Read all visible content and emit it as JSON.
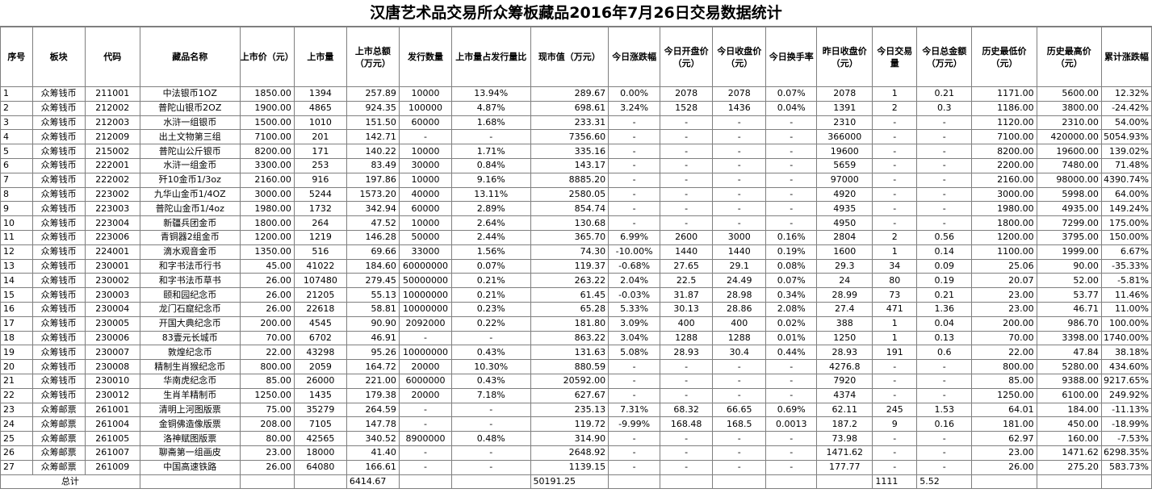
{
  "title": "汉唐艺术品交易所众筹板藏品2016年7月26日交易数据统计",
  "headers": [
    "序号",
    "板块",
    "代码",
    "藏品名称",
    "上市价（元）",
    "上市量",
    "上市总额（万元）",
    "发行数量",
    "上市量占发行量比",
    "现市值（万元）",
    "今日涨跌幅",
    "今日开盘价（元）",
    "今日收盘价（元）",
    "今日换手率",
    "昨日收盘价（元）",
    "今日交易量",
    "今日总金额（万元）",
    "历史最低价（元）",
    "历史最高价（元）",
    "累计涨跌幅"
  ],
  "rows": [
    [
      "1",
      "众筹钱币",
      "211001",
      "中法银币1OZ",
      "1850.00",
      "1394",
      "257.89",
      "10000",
      "13.94%",
      "289.67",
      "0.00%",
      "2078",
      "2078",
      "0.07%",
      "2078",
      "1",
      "0.21",
      "1171.00",
      "5600.00",
      "12.32%"
    ],
    [
      "2",
      "众筹钱币",
      "212002",
      "普陀山银币2OZ",
      "1900.00",
      "4865",
      "924.35",
      "100000",
      "4.87%",
      "698.61",
      "3.24%",
      "1528",
      "1436",
      "0.04%",
      "1391",
      "2",
      "0.3",
      "1186.00",
      "3800.00",
      "-24.42%"
    ],
    [
      "3",
      "众筹钱币",
      "212003",
      "水浒一组银币",
      "1500.00",
      "1010",
      "151.50",
      "60000",
      "1.68%",
      "233.31",
      "-",
      "-",
      "-",
      "-",
      "2310",
      "-",
      "-",
      "1120.00",
      "2310.00",
      "54.00%"
    ],
    [
      "4",
      "众筹钱币",
      "212009",
      "出土文物第三组",
      "7100.00",
      "201",
      "142.71",
      "-",
      "-",
      "7356.60",
      "-",
      "-",
      "-",
      "-",
      "366000",
      "-",
      "-",
      "7100.00",
      "420000.00",
      "5054.93%"
    ],
    [
      "5",
      "众筹钱币",
      "215002",
      "普陀山公斤银币",
      "8200.00",
      "171",
      "140.22",
      "10000",
      "1.71%",
      "335.16",
      "-",
      "-",
      "-",
      "-",
      "19600",
      "-",
      "-",
      "8200.00",
      "19600.00",
      "139.02%"
    ],
    [
      "6",
      "众筹钱币",
      "222001",
      "水浒一组金币",
      "3300.00",
      "253",
      "83.49",
      "30000",
      "0.84%",
      "143.17",
      "-",
      "-",
      "-",
      "-",
      "5659",
      "-",
      "-",
      "2200.00",
      "7480.00",
      "71.48%"
    ],
    [
      "7",
      "众筹钱币",
      "222002",
      "歼10金币1/3oz",
      "2160.00",
      "916",
      "197.86",
      "10000",
      "9.16%",
      "8885.20",
      "-",
      "-",
      "-",
      "-",
      "97000",
      "-",
      "-",
      "2160.00",
      "98000.00",
      "4390.74%"
    ],
    [
      "8",
      "众筹钱币",
      "223002",
      "九华山金币1/4OZ",
      "3000.00",
      "5244",
      "1573.20",
      "40000",
      "13.11%",
      "2580.05",
      "-",
      "-",
      "-",
      "-",
      "4920",
      "-",
      "-",
      "3000.00",
      "5998.00",
      "64.00%"
    ],
    [
      "9",
      "众筹钱币",
      "223003",
      "普陀山金币1/4oz",
      "1980.00",
      "1732",
      "342.94",
      "60000",
      "2.89%",
      "854.74",
      "-",
      "-",
      "-",
      "-",
      "4935",
      "-",
      "-",
      "1980.00",
      "4935.00",
      "149.24%"
    ],
    [
      "10",
      "众筹钱币",
      "223004",
      "新疆兵团金币",
      "1800.00",
      "264",
      "47.52",
      "10000",
      "2.64%",
      "130.68",
      "-",
      "-",
      "-",
      "-",
      "4950",
      "-",
      "-",
      "1800.00",
      "7299.00",
      "175.00%"
    ],
    [
      "11",
      "众筹钱币",
      "223006",
      "青铜器2组金币",
      "1200.00",
      "1219",
      "146.28",
      "50000",
      "2.44%",
      "365.70",
      "6.99%",
      "2600",
      "3000",
      "0.16%",
      "2804",
      "2",
      "0.56",
      "1200.00",
      "3795.00",
      "150.00%"
    ],
    [
      "12",
      "众筹钱币",
      "224001",
      "滴水观音金币",
      "1350.00",
      "516",
      "69.66",
      "33000",
      "1.56%",
      "74.30",
      "-10.00%",
      "1440",
      "1440",
      "0.19%",
      "1600",
      "1",
      "0.14",
      "1100.00",
      "1999.00",
      "6.67%"
    ],
    [
      "13",
      "众筹钱币",
      "230001",
      "和字书法币行书",
      "45.00",
      "41022",
      "184.60",
      "60000000",
      "0.07%",
      "119.37",
      "-0.68%",
      "27.65",
      "29.1",
      "0.08%",
      "29.3",
      "34",
      "0.09",
      "25.06",
      "90.00",
      "-35.33%"
    ],
    [
      "14",
      "众筹钱币",
      "230002",
      "和字书法币草书",
      "26.00",
      "107480",
      "279.45",
      "50000000",
      "0.21%",
      "263.22",
      "2.04%",
      "22.5",
      "24.49",
      "0.07%",
      "24",
      "80",
      "0.19",
      "20.07",
      "52.00",
      "-5.81%"
    ],
    [
      "15",
      "众筹钱币",
      "230003",
      "颐和园纪念币",
      "26.00",
      "21205",
      "55.13",
      "10000000",
      "0.21%",
      "61.45",
      "-0.03%",
      "31.87",
      "28.98",
      "0.34%",
      "28.99",
      "73",
      "0.21",
      "23.00",
      "53.77",
      "11.46%"
    ],
    [
      "16",
      "众筹钱币",
      "230004",
      "龙门石窟纪念币",
      "26.00",
      "22618",
      "58.81",
      "10000000",
      "0.23%",
      "65.28",
      "5.33%",
      "30.13",
      "28.86",
      "2.08%",
      "27.4",
      "471",
      "1.36",
      "23.00",
      "46.71",
      "11.00%"
    ],
    [
      "17",
      "众筹钱币",
      "230005",
      "开国大典纪念币",
      "200.00",
      "4545",
      "90.90",
      "2092000",
      "0.22%",
      "181.80",
      "3.09%",
      "400",
      "400",
      "0.02%",
      "388",
      "1",
      "0.04",
      "200.00",
      "986.70",
      "100.00%"
    ],
    [
      "18",
      "众筹钱币",
      "230006",
      "83壹元长城币",
      "70.00",
      "6702",
      "46.91",
      "-",
      "-",
      "863.22",
      "3.04%",
      "1288",
      "1288",
      "0.01%",
      "1250",
      "1",
      "0.13",
      "70.00",
      "3398.00",
      "1740.00%"
    ],
    [
      "19",
      "众筹钱币",
      "230007",
      "敦煌纪念币",
      "22.00",
      "43298",
      "95.26",
      "10000000",
      "0.43%",
      "131.63",
      "5.08%",
      "28.93",
      "30.4",
      "0.44%",
      "28.93",
      "191",
      "0.6",
      "22.00",
      "47.84",
      "38.18%"
    ],
    [
      "20",
      "众筹钱币",
      "230008",
      "精制生肖猴纪念币",
      "800.00",
      "2059",
      "164.72",
      "20000",
      "10.30%",
      "880.59",
      "-",
      "-",
      "-",
      "-",
      "4276.8",
      "-",
      "-",
      "800.00",
      "5280.00",
      "434.60%"
    ],
    [
      "21",
      "众筹钱币",
      "230010",
      "华南虎纪念币",
      "85.00",
      "26000",
      "221.00",
      "6000000",
      "0.43%",
      "20592.00",
      "-",
      "-",
      "-",
      "-",
      "7920",
      "-",
      "-",
      "85.00",
      "9388.00",
      "9217.65%"
    ],
    [
      "22",
      "众筹钱币",
      "230012",
      "生肖羊精制币",
      "1250.00",
      "1435",
      "179.38",
      "20000",
      "7.18%",
      "627.67",
      "-",
      "-",
      "-",
      "-",
      "4374",
      "-",
      "-",
      "1250.00",
      "6100.00",
      "249.92%"
    ],
    [
      "23",
      "众筹邮票",
      "261001",
      "清明上河图版票",
      "75.00",
      "35279",
      "264.59",
      "-",
      "-",
      "235.13",
      "7.31%",
      "68.32",
      "66.65",
      "0.69%",
      "62.11",
      "245",
      "1.53",
      "64.01",
      "184.00",
      "-11.13%"
    ],
    [
      "24",
      "众筹邮票",
      "261004",
      "金铜佛造像版票",
      "208.00",
      "7105",
      "147.78",
      "-",
      "-",
      "119.72",
      "-9.99%",
      "168.48",
      "168.5",
      "0.0013",
      "187.2",
      "9",
      "0.16",
      "181.00",
      "450.00",
      "-18.99%"
    ],
    [
      "25",
      "众筹邮票",
      "261005",
      "洛神赋图版票",
      "80.00",
      "42565",
      "340.52",
      "8900000",
      "0.48%",
      "314.90",
      "-",
      "-",
      "-",
      "-",
      "73.98",
      "-",
      "-",
      "62.97",
      "160.00",
      "-7.53%"
    ],
    [
      "26",
      "众筹邮票",
      "261007",
      "聊斋第一组画皮",
      "23.00",
      "18000",
      "41.40",
      "-",
      "-",
      "2648.92",
      "-",
      "-",
      "-",
      "-",
      "1471.62",
      "-",
      "-",
      "23.00",
      "1471.62",
      "6298.35%"
    ],
    [
      "27",
      "众筹邮票",
      "261009",
      "中国高速铁路",
      "26.00",
      "64080",
      "166.61",
      "-",
      "-",
      "1139.15",
      "-",
      "-",
      "-",
      "-",
      "177.77",
      "-",
      "-",
      "26.00",
      "275.20",
      "583.73%"
    ]
  ],
  "total": {
    "label": "总计",
    "listing_total": "6414.67",
    "market_value": "50191.25",
    "volume": "1111",
    "amount": "5.52"
  }
}
